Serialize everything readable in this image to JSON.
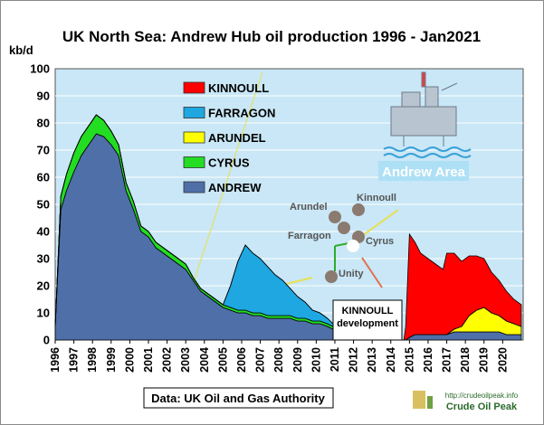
{
  "chart_data": {
    "type": "area",
    "title": "UK North Sea: Andrew Hub oil production 1996 - Jan2021",
    "ylabel": "kb/d",
    "ylim": [
      0,
      100
    ],
    "yticks": [
      0,
      10,
      20,
      30,
      40,
      50,
      60,
      70,
      80,
      90,
      100
    ],
    "xlim": [
      1996,
      2021.1
    ],
    "xticks": [
      "1996",
      "1997",
      "1998",
      "1999",
      "2000",
      "2001",
      "2002",
      "2003",
      "2004",
      "2005",
      "2006",
      "2007",
      "2008",
      "2009",
      "2010",
      "2011",
      "2012",
      "2013",
      "2014",
      "2015",
      "2016",
      "2017",
      "2018",
      "2019",
      "2020"
    ],
    "stacked": true,
    "grid": "horizontal",
    "legend_position": "top-left",
    "x": [
      1996.0,
      1996.3,
      1996.6,
      1997.0,
      1997.4,
      1997.8,
      1998.2,
      1998.6,
      1999.0,
      1999.4,
      1999.8,
      2000.2,
      2000.6,
      2001.0,
      2001.4,
      2001.8,
      2002.2,
      2002.6,
      2003.0,
      2003.4,
      2003.8,
      2004.2,
      2004.6,
      2005.0,
      2005.4,
      2005.8,
      2006.2,
      2006.6,
      2007.0,
      2007.4,
      2007.8,
      2008.2,
      2008.6,
      2009.0,
      2009.4,
      2009.8,
      2010.2,
      2010.6,
      2010.9,
      2011.0,
      2012.0,
      2013.0,
      2014.0,
      2014.7,
      2014.8,
      2015.0,
      2015.3,
      2015.6,
      2016.0,
      2016.4,
      2016.8,
      2017.0,
      2017.4,
      2017.8,
      2018.2,
      2018.6,
      2019.0,
      2019.4,
      2019.8,
      2020.2,
      2020.6,
      2021.0
    ],
    "series": [
      {
        "name": "ANDREW",
        "color": "#4f6fa8",
        "values": [
          5,
          48,
          55,
          62,
          68,
          72,
          76,
          75,
          72,
          68,
          55,
          48,
          40,
          38,
          34,
          32,
          30,
          28,
          26,
          22,
          18,
          16,
          14,
          12,
          11,
          10,
          10,
          9,
          9,
          8,
          8,
          8,
          8,
          7,
          7,
          6,
          6,
          5,
          4,
          0,
          0,
          0,
          0,
          0,
          0,
          1,
          2,
          2,
          2,
          2,
          2,
          2,
          3,
          3,
          3,
          3,
          3,
          3,
          3,
          2,
          2,
          2
        ]
      },
      {
        "name": "CYRUS",
        "color": "#22dd22",
        "values": [
          0,
          5,
          6,
          7,
          7,
          7,
          7,
          6,
          5,
          4,
          3,
          3,
          2,
          2,
          2,
          2,
          2,
          2,
          2,
          1,
          1,
          1,
          1,
          1,
          1,
          1,
          1,
          1,
          1,
          1,
          1,
          1,
          1,
          1,
          1,
          1,
          1,
          1,
          1,
          0,
          0,
          0,
          0,
          0,
          0,
          0,
          0,
          0,
          0,
          0,
          0,
          0,
          0,
          0,
          0,
          0,
          0,
          0,
          0,
          0,
          0,
          0
        ]
      },
      {
        "name": "ARUNDEL",
        "color": "#ffff00",
        "values": [
          0,
          0,
          0,
          0,
          0,
          0,
          0,
          0,
          0,
          0,
          0,
          0,
          0,
          0,
          0,
          0,
          0,
          0,
          0,
          0,
          0,
          0,
          0,
          0,
          0,
          0,
          0,
          0,
          0,
          0,
          0,
          0,
          0,
          0,
          0,
          0,
          0,
          0,
          0,
          0,
          0,
          0,
          0,
          0,
          0,
          0,
          0,
          0,
          0,
          0,
          0,
          0,
          1,
          2,
          6,
          8,
          9,
          7,
          6,
          5,
          4,
          3
        ]
      },
      {
        "name": "FARRAGON",
        "color": "#1ea7e1",
        "values": [
          0,
          0,
          0,
          0,
          0,
          0,
          0,
          0,
          0,
          0,
          0,
          0,
          0,
          0,
          0,
          0,
          0,
          0,
          0,
          0,
          0,
          0,
          0,
          0,
          8,
          18,
          24,
          22,
          20,
          18,
          15,
          13,
          10,
          8,
          6,
          4,
          3,
          2,
          1,
          0,
          0,
          0,
          0,
          0,
          0,
          0,
          0,
          0,
          0,
          0,
          0,
          0,
          0,
          0,
          0,
          0,
          0,
          0,
          0,
          0,
          0,
          0
        ]
      },
      {
        "name": "KINNOULL",
        "color": "#ff0000",
        "values": [
          0,
          0,
          0,
          0,
          0,
          0,
          0,
          0,
          0,
          0,
          0,
          0,
          0,
          0,
          0,
          0,
          0,
          0,
          0,
          0,
          0,
          0,
          0,
          0,
          0,
          0,
          0,
          0,
          0,
          0,
          0,
          0,
          0,
          0,
          0,
          0,
          0,
          0,
          0,
          0,
          0,
          0,
          0,
          0,
          5,
          38,
          34,
          30,
          28,
          26,
          24,
          30,
          28,
          24,
          22,
          20,
          18,
          15,
          13,
          11,
          9,
          8
        ]
      }
    ],
    "annotations": [
      "KINNOULL development"
    ],
    "inset_labels": [
      "Andrew Area",
      "Arundel",
      "Kinnoull",
      "Farragon",
      "Cyrus",
      "Unity"
    ],
    "source": "Data: UK Oil and Gas Authority",
    "logo_text": "Crude Oil Peak",
    "logo_url_text": "http://crudeoilpeak.info"
  }
}
